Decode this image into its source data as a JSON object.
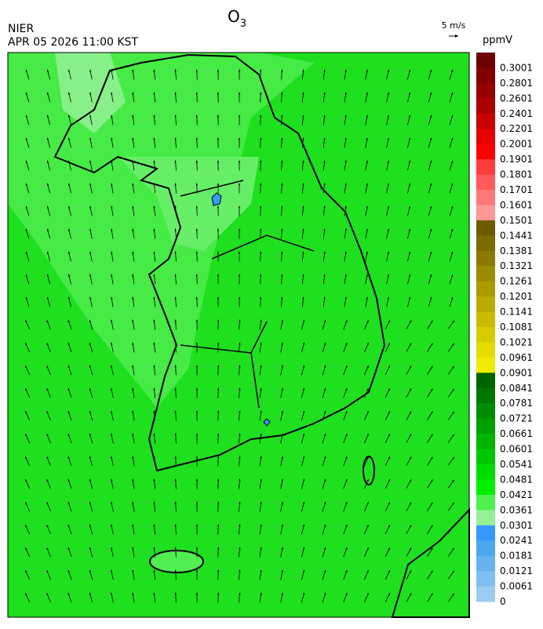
{
  "title": {
    "text": "O",
    "subscript": "3"
  },
  "agency": "NIER",
  "timestamp": "APR 05 2026 11:00 KST",
  "wind_scale": {
    "label": "5 m/s"
  },
  "colorbar": {
    "unit": "ppmV",
    "bins": [
      {
        "label": "0.3001",
        "color": "#6e0000"
      },
      {
        "label": "0.2801",
        "color": "#820000"
      },
      {
        "label": "0.2601",
        "color": "#960000"
      },
      {
        "label": "0.2401",
        "color": "#aa0000"
      },
      {
        "label": "0.2201",
        "color": "#c80000"
      },
      {
        "label": "0.2001",
        "color": "#e60000"
      },
      {
        "label": "0.1901",
        "color": "#ff0000"
      },
      {
        "label": "0.1801",
        "color": "#ff3c3c"
      },
      {
        "label": "0.1701",
        "color": "#ff5a5a"
      },
      {
        "label": "0.1601",
        "color": "#ff7878"
      },
      {
        "label": "0.1501",
        "color": "#ff9696"
      },
      {
        "label": "0.1441",
        "color": "#6e5a00"
      },
      {
        "label": "0.1381",
        "color": "#7d6a00"
      },
      {
        "label": "0.1321",
        "color": "#8c7a00"
      },
      {
        "label": "0.1261",
        "color": "#9b8b00"
      },
      {
        "label": "0.1201",
        "color": "#aa9b00"
      },
      {
        "label": "0.1141",
        "color": "#b9ab00"
      },
      {
        "label": "0.1081",
        "color": "#c8bb00"
      },
      {
        "label": "0.1021",
        "color": "#d7cb00"
      },
      {
        "label": "0.0961",
        "color": "#e6db00"
      },
      {
        "label": "0.0901",
        "color": "#f0eb00"
      },
      {
        "label": "0.0841",
        "color": "#006400"
      },
      {
        "label": "0.0781",
        "color": "#007800"
      },
      {
        "label": "0.0721",
        "color": "#008c00"
      },
      {
        "label": "0.0661",
        "color": "#00a000"
      },
      {
        "label": "0.0601",
        "color": "#00b400"
      },
      {
        "label": "0.0541",
        "color": "#00c800"
      },
      {
        "label": "0.0481",
        "color": "#00dc00"
      },
      {
        "label": "0.0421",
        "color": "#00f000"
      },
      {
        "label": "0.0361",
        "color": "#50f050"
      },
      {
        "label": "0.0301",
        "color": "#96f096"
      },
      {
        "label": "0.0241",
        "color": "#3399ff"
      },
      {
        "label": "0.0181",
        "color": "#4da6f0"
      },
      {
        "label": "0.0121",
        "color": "#66b2ee"
      },
      {
        "label": "0.0061",
        "color": "#80bff0"
      },
      {
        "label": "0",
        "color": "#99ccee"
      }
    ]
  }
}
